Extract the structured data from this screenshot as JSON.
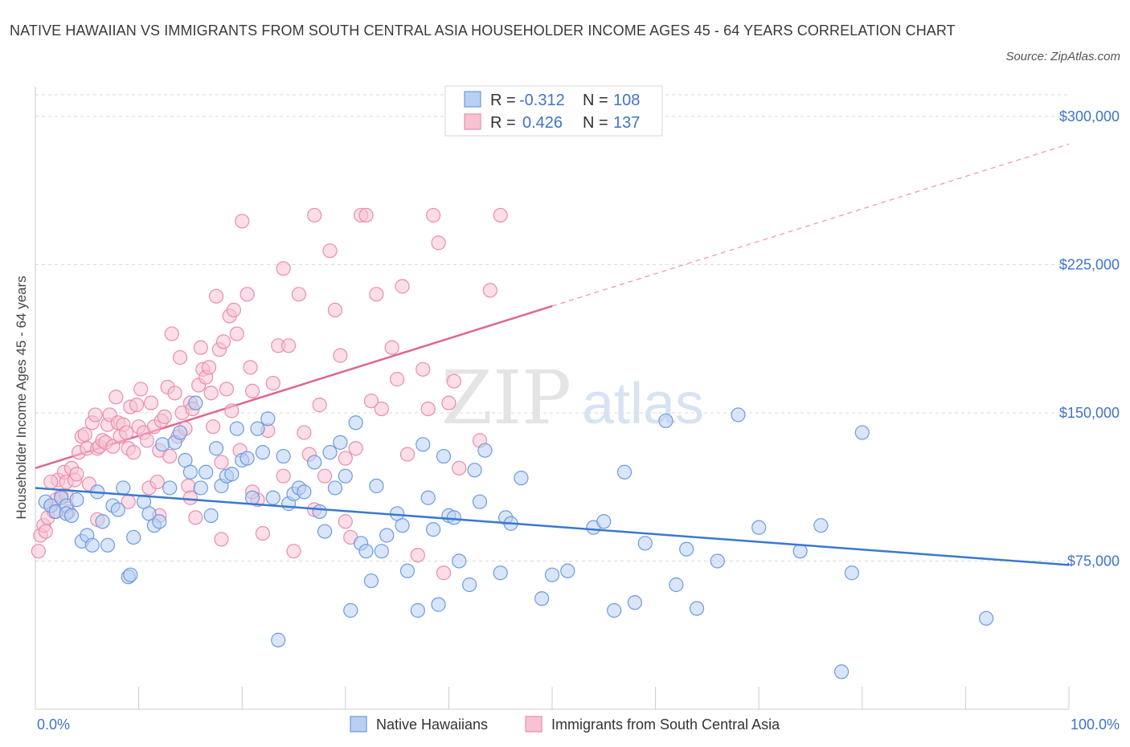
{
  "header": {
    "title": "NATIVE HAWAIIAN VS IMMIGRANTS FROM SOUTH CENTRAL ASIA HOUSEHOLDER INCOME AGES 45 - 64 YEARS CORRELATION CHART",
    "source": "Source: ZipAtlas.com"
  },
  "watermark": {
    "zip": "ZIP",
    "atlas": "atlas"
  },
  "colors": {
    "blue": "#6b9be0",
    "blue_fill": "#b9d0f3",
    "blue_line": "#3a78cf",
    "pink": "#ec8cab",
    "pink_fill": "#f7c3d3",
    "pink_line": "#e0668f",
    "axis_text": "#3f73c9",
    "grid": "#d9d9d9"
  },
  "legend": {
    "row1": {
      "r_label": "R =",
      "r_value": "-0.312",
      "n_label": "N =",
      "n_value": "108"
    },
    "row2": {
      "r_label": "R =",
      "r_value": "0.426",
      "n_label": "N =",
      "n_value": "137"
    }
  },
  "chart_data": {
    "type": "scatter",
    "title": "NATIVE HAWAIIAN VS IMMIGRANTS FROM SOUTH CENTRAL ASIA HOUSEHOLDER INCOME AGES 45 - 64 YEARS CORRELATION CHART",
    "xlabel": "",
    "ylabel": "Householder Income Ages 45 - 64 years",
    "xlim": [
      0,
      100
    ],
    "ylim": [
      0,
      315000
    ],
    "x_tick_labels": [
      "0.0%",
      "100.0%"
    ],
    "y_ticks": [
      75000,
      150000,
      225000,
      300000
    ],
    "y_tick_labels": [
      "$75,000",
      "$150,000",
      "$225,000",
      "$300,000"
    ],
    "grid": true,
    "legend_position": "top-center",
    "series": [
      {
        "name": "Native Hawaiians",
        "r": -0.312,
        "n": 108,
        "trend": {
          "x": [
            0,
            100
          ],
          "y": [
            112000,
            73000
          ]
        },
        "points": [
          [
            1,
            105000
          ],
          [
            1.5,
            103000
          ],
          [
            2,
            100000
          ],
          [
            2.5,
            107000
          ],
          [
            3,
            103000
          ],
          [
            3,
            99000
          ],
          [
            3.5,
            98000
          ],
          [
            4,
            106000
          ],
          [
            4.5,
            85000
          ],
          [
            5,
            88000
          ],
          [
            5.5,
            83000
          ],
          [
            6,
            110000
          ],
          [
            6.5,
            95000
          ],
          [
            7,
            83000
          ],
          [
            7.5,
            103000
          ],
          [
            8,
            101000
          ],
          [
            8.5,
            112000
          ],
          [
            9,
            67000
          ],
          [
            9.2,
            68000
          ],
          [
            9.5,
            87000
          ],
          [
            10.5,
            105000
          ],
          [
            11,
            99000
          ],
          [
            11.5,
            93000
          ],
          [
            12,
            95000
          ],
          [
            12.3,
            134000
          ],
          [
            13,
            112000
          ],
          [
            13.5,
            135000
          ],
          [
            14,
            140000
          ],
          [
            14.5,
            126000
          ],
          [
            15,
            120000
          ],
          [
            15.5,
            155000
          ],
          [
            16,
            112000
          ],
          [
            16.5,
            120000
          ],
          [
            17,
            98000
          ],
          [
            17.5,
            132000
          ],
          [
            18,
            113000
          ],
          [
            18.5,
            118000
          ],
          [
            19,
            119000
          ],
          [
            19.5,
            142000
          ],
          [
            20,
            126000
          ],
          [
            20.5,
            127000
          ],
          [
            21,
            107000
          ],
          [
            21.5,
            142000
          ],
          [
            22,
            130000
          ],
          [
            22.5,
            147000
          ],
          [
            23,
            107000
          ],
          [
            23.5,
            35000
          ],
          [
            24,
            128000
          ],
          [
            24.5,
            104000
          ],
          [
            25,
            109000
          ],
          [
            25.5,
            112000
          ],
          [
            26,
            110000
          ],
          [
            27,
            125000
          ],
          [
            27.5,
            100000
          ],
          [
            28,
            90000
          ],
          [
            28.5,
            130000
          ],
          [
            29,
            112000
          ],
          [
            29.5,
            135000
          ],
          [
            30,
            118000
          ],
          [
            30.5,
            50000
          ],
          [
            31,
            145000
          ],
          [
            31.5,
            84000
          ],
          [
            32,
            80000
          ],
          [
            32.5,
            65000
          ],
          [
            33,
            113000
          ],
          [
            33.5,
            80000
          ],
          [
            34,
            88000
          ],
          [
            35,
            99000
          ],
          [
            35.5,
            93000
          ],
          [
            36,
            70000
          ],
          [
            37,
            50000
          ],
          [
            37.5,
            134000
          ],
          [
            38,
            107000
          ],
          [
            38.5,
            91000
          ],
          [
            39,
            53000
          ],
          [
            39.5,
            128000
          ],
          [
            40,
            98000
          ],
          [
            40.5,
            97000
          ],
          [
            41,
            75000
          ],
          [
            42,
            63000
          ],
          [
            42.5,
            121000
          ],
          [
            43,
            105000
          ],
          [
            43.5,
            131000
          ],
          [
            45,
            69000
          ],
          [
            45.5,
            97000
          ],
          [
            46,
            94000
          ],
          [
            47,
            117000
          ],
          [
            49,
            56000
          ],
          [
            50,
            68000
          ],
          [
            51.5,
            70000
          ],
          [
            54,
            92000
          ],
          [
            55,
            95000
          ],
          [
            56,
            50000
          ],
          [
            57,
            120000
          ],
          [
            58,
            54000
          ],
          [
            59,
            84000
          ],
          [
            61,
            146000
          ],
          [
            62,
            63000
          ],
          [
            63,
            81000
          ],
          [
            64,
            51000
          ],
          [
            66,
            75000
          ],
          [
            68,
            149000
          ],
          [
            70,
            92000
          ],
          [
            74,
            80000
          ],
          [
            76,
            93000
          ],
          [
            78,
            19000
          ],
          [
            79,
            69000
          ],
          [
            80,
            140000
          ],
          [
            92,
            46000
          ]
        ]
      },
      {
        "name": "Immigrants from South Central Asia",
        "r": 0.426,
        "n": 137,
        "trend": {
          "x": [
            0,
            50
          ],
          "y": [
            122000,
            204000
          ]
        },
        "trend_extension": {
          "x": [
            50,
            100
          ],
          "y": [
            204000,
            286000
          ]
        },
        "points": [
          [
            0.3,
            80000
          ],
          [
            0.5,
            88000
          ],
          [
            0.8,
            93000
          ],
          [
            1,
            90000
          ],
          [
            1.2,
            97000
          ],
          [
            1.5,
            103000
          ],
          [
            1.8,
            100000
          ],
          [
            2,
            106000
          ],
          [
            2.2,
            116000
          ],
          [
            2.5,
            108000
          ],
          [
            2.8,
            120000
          ],
          [
            3,
            115000
          ],
          [
            3.2,
            100000
          ],
          [
            3.5,
            122000
          ],
          [
            3.8,
            116000
          ],
          [
            4,
            119000
          ],
          [
            4.2,
            130000
          ],
          [
            4.5,
            138000
          ],
          [
            4.8,
            139000
          ],
          [
            5,
            132000
          ],
          [
            5.2,
            114000
          ],
          [
            5.5,
            145000
          ],
          [
            5.8,
            149000
          ],
          [
            6,
            132000
          ],
          [
            6.2,
            133000
          ],
          [
            6.5,
            136000
          ],
          [
            6.8,
            135000
          ],
          [
            7,
            144000
          ],
          [
            7.2,
            149000
          ],
          [
            7.5,
            133000
          ],
          [
            7.8,
            158000
          ],
          [
            8,
            145000
          ],
          [
            8.2,
            138000
          ],
          [
            8.5,
            144000
          ],
          [
            8.8,
            140000
          ],
          [
            9,
            132000
          ],
          [
            9.2,
            153000
          ],
          [
            9.5,
            130000
          ],
          [
            9.8,
            154000
          ],
          [
            10,
            143000
          ],
          [
            10.2,
            162000
          ],
          [
            10.5,
            140000
          ],
          [
            10.8,
            136000
          ],
          [
            11,
            112000
          ],
          [
            11.2,
            155000
          ],
          [
            11.5,
            143000
          ],
          [
            11.8,
            115000
          ],
          [
            12,
            131000
          ],
          [
            12.2,
            146000
          ],
          [
            12.5,
            148000
          ],
          [
            12.8,
            163000
          ],
          [
            13,
            128000
          ],
          [
            13.2,
            190000
          ],
          [
            13.5,
            160000
          ],
          [
            13.8,
            138000
          ],
          [
            14,
            178000
          ],
          [
            14.2,
            150000
          ],
          [
            14.5,
            142000
          ],
          [
            14.8,
            113000
          ],
          [
            15,
            155000
          ],
          [
            15.2,
            152000
          ],
          [
            15.5,
            97000
          ],
          [
            15.8,
            164000
          ],
          [
            16,
            183000
          ],
          [
            16.2,
            172000
          ],
          [
            16.5,
            168000
          ],
          [
            16.8,
            173000
          ],
          [
            17,
            160000
          ],
          [
            17.2,
            143000
          ],
          [
            17.5,
            209000
          ],
          [
            17.8,
            182000
          ],
          [
            18,
            86000
          ],
          [
            18.2,
            186000
          ],
          [
            18.5,
            162000
          ],
          [
            18.8,
            199000
          ],
          [
            19,
            151000
          ],
          [
            19.2,
            202000
          ],
          [
            19.5,
            190000
          ],
          [
            19.8,
            131000
          ],
          [
            20,
            247000
          ],
          [
            20.5,
            210000
          ],
          [
            20.8,
            173000
          ],
          [
            21,
            161000
          ],
          [
            21.5,
            106000
          ],
          [
            22,
            89000
          ],
          [
            22.5,
            141000
          ],
          [
            23,
            165000
          ],
          [
            23.5,
            184000
          ],
          [
            24,
            223000
          ],
          [
            24.5,
            184000
          ],
          [
            25,
            80000
          ],
          [
            25.5,
            210000
          ],
          [
            26,
            140000
          ],
          [
            26.5,
            129000
          ],
          [
            27,
            250000
          ],
          [
            27.5,
            154000
          ],
          [
            28,
            118000
          ],
          [
            28.5,
            232000
          ],
          [
            29,
            202000
          ],
          [
            29.5,
            179000
          ],
          [
            30,
            127000
          ],
          [
            30.5,
            87000
          ],
          [
            31,
            132000
          ],
          [
            31.5,
            250000
          ],
          [
            32,
            250000
          ],
          [
            32.5,
            156000
          ],
          [
            33,
            210000
          ],
          [
            33.5,
            152000
          ],
          [
            34.5,
            183000
          ],
          [
            35,
            167000
          ],
          [
            35.5,
            214000
          ],
          [
            36,
            129000
          ],
          [
            37,
            78000
          ],
          [
            37.5,
            172000
          ],
          [
            38,
            152000
          ],
          [
            38.5,
            250000
          ],
          [
            39,
            236000
          ],
          [
            39.5,
            69000
          ],
          [
            40,
            155000
          ],
          [
            40.5,
            166000
          ],
          [
            41,
            122000
          ],
          [
            43,
            136000
          ],
          [
            44,
            212000
          ],
          [
            45,
            250000
          ],
          [
            1.5,
            115000
          ],
          [
            3,
            108000
          ],
          [
            6,
            96000
          ],
          [
            9,
            105000
          ],
          [
            12,
            98000
          ],
          [
            15,
            107000
          ],
          [
            18,
            125000
          ],
          [
            21,
            110000
          ],
          [
            24,
            118000
          ],
          [
            27,
            101000
          ],
          [
            30,
            95000
          ]
        ]
      }
    ]
  },
  "bottom_legend": [
    {
      "label": "Native Hawaiians"
    },
    {
      "label": "Immigrants from South Central Asia"
    }
  ]
}
